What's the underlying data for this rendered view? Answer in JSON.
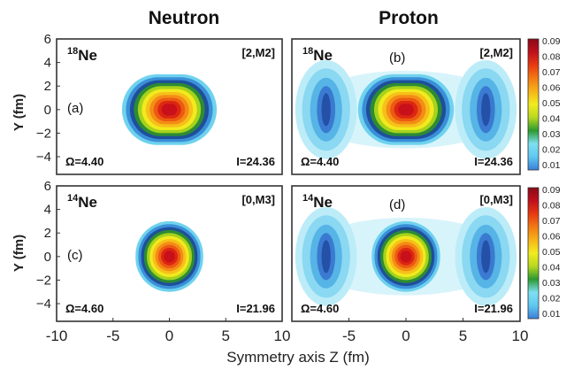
{
  "column_titles": {
    "left": "Neutron",
    "right": "Proton"
  },
  "axes": {
    "ylabel": "Y (fm)",
    "xlabel": "Symmetry axis Z (fm)",
    "left_x_ticks": [
      -10,
      -5,
      0,
      5,
      10
    ],
    "right_x_ticks": [
      -5,
      0,
      5,
      10
    ],
    "y_ticks": [
      6,
      4,
      2,
      0,
      -2,
      -4
    ]
  },
  "colorbar": {
    "ticks": [
      "0.09",
      "0.08",
      "0.07",
      "0.06",
      "0.05",
      "0.04",
      "0.03",
      "0.02",
      "0.01"
    ],
    "colors": [
      "#3b7fd9",
      "#5ec8f0",
      "#7ee0f2",
      "#2a9a30",
      "#b8d820",
      "#f2ec20",
      "#f6b418",
      "#f27a14",
      "#e83a12",
      "#c0101c",
      "#8a0a16"
    ]
  },
  "chart_data": [
    {
      "type": "heatmap",
      "panel": "(a)",
      "nucleus_mass": "18",
      "nucleus_symbol": "Ne",
      "config": "[2,M2]",
      "omega": "Ω=4.40",
      "spin": "I=24.36",
      "xlim": [
        -10,
        10
      ],
      "ylim": [
        -5.5,
        6
      ],
      "density_max": 0.09,
      "shape": "elongated core",
      "core": {
        "z_center": 0,
        "z_half_length": 4.2,
        "y_half_width": 3.0
      }
    },
    {
      "type": "heatmap",
      "panel": "(b)",
      "nucleus_mass": "18",
      "nucleus_symbol": "Ne",
      "config": "[2,M2]",
      "omega": "Ω=4.40",
      "spin": "I=24.36",
      "xlim": [
        -10,
        10
      ],
      "ylim": [
        -5.5,
        6
      ],
      "density_max": 0.09,
      "shape": "elongated core with side lobes",
      "core": {
        "z_center": 0,
        "z_half_length": 4.2,
        "y_half_width": 3.0
      },
      "lobes_z": [
        -7.0,
        7.0
      ]
    },
    {
      "type": "heatmap",
      "panel": "(c)",
      "nucleus_mass": "14",
      "nucleus_symbol": "Ne",
      "config": "[0,M3]",
      "omega": "Ω=4.60",
      "spin": "I=21.96",
      "xlim": [
        -10,
        10
      ],
      "ylim": [
        -5.5,
        6
      ],
      "density_max": 0.09,
      "shape": "spherical core",
      "core": {
        "z_center": 0,
        "z_half_length": 3.0,
        "y_half_width": 3.0
      }
    },
    {
      "type": "heatmap",
      "panel": "(d)",
      "nucleus_mass": "14",
      "nucleus_symbol": "Ne",
      "config": "[0,M3]",
      "omega": "Ω=4.60",
      "spin": "I=21.96",
      "xlim": [
        -10,
        10
      ],
      "ylim": [
        -5.5,
        6
      ],
      "density_max": 0.09,
      "shape": "spherical core with side lobes",
      "core": {
        "z_center": 0,
        "z_half_length": 3.0,
        "y_half_width": 3.0
      },
      "lobes_z": [
        -7.0,
        7.0
      ]
    }
  ]
}
